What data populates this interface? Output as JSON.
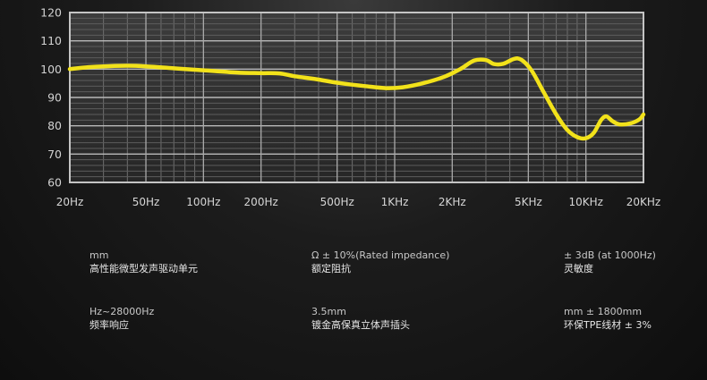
{
  "chart_data": {
    "type": "line",
    "xscale": "log",
    "xlim": [
      20,
      20000
    ],
    "ylim": [
      60,
      120
    ],
    "grid": true,
    "x_ticks": [
      {
        "value": 20,
        "label": "20Hz"
      },
      {
        "value": 50,
        "label": "50Hz"
      },
      {
        "value": 100,
        "label": "100Hz"
      },
      {
        "value": 200,
        "label": "200Hz"
      },
      {
        "value": 500,
        "label": "500Hz"
      },
      {
        "value": 1000,
        "label": "1KHz"
      },
      {
        "value": 2000,
        "label": "2KHz"
      },
      {
        "value": 5000,
        "label": "5KHz"
      },
      {
        "value": 10000,
        "label": "10KHz"
      },
      {
        "value": 20000,
        "label": "20KHz"
      }
    ],
    "y_ticks": [
      60,
      70,
      80,
      90,
      100,
      110,
      120
    ],
    "series": [
      {
        "color": "#f2e21a",
        "points": [
          [
            20,
            100
          ],
          [
            25,
            100.7
          ],
          [
            30,
            101
          ],
          [
            40,
            101.2
          ],
          [
            50,
            101
          ],
          [
            70,
            100.3
          ],
          [
            100,
            99.6
          ],
          [
            150,
            98.8
          ],
          [
            200,
            98.6
          ],
          [
            250,
            98.5
          ],
          [
            300,
            97.5
          ],
          [
            400,
            96.3
          ],
          [
            500,
            95.2
          ],
          [
            700,
            94
          ],
          [
            900,
            93.3
          ],
          [
            1100,
            93.6
          ],
          [
            1400,
            95
          ],
          [
            1800,
            97.2
          ],
          [
            2200,
            100
          ],
          [
            2600,
            103
          ],
          [
            3000,
            103.2
          ],
          [
            3300,
            101.8
          ],
          [
            3700,
            101.9
          ],
          [
            4200,
            103.6
          ],
          [
            4600,
            103.3
          ],
          [
            5200,
            99.5
          ],
          [
            6000,
            92
          ],
          [
            7000,
            84
          ],
          [
            8000,
            78.5
          ],
          [
            9000,
            76
          ],
          [
            10000,
            75.6
          ],
          [
            11000,
            77.5
          ],
          [
            12000,
            82
          ],
          [
            12800,
            83.3
          ],
          [
            13800,
            81.6
          ],
          [
            15000,
            80.5
          ],
          [
            17000,
            80.8
          ],
          [
            19000,
            82.2
          ],
          [
            20000,
            84
          ]
        ]
      }
    ]
  },
  "specs": [
    {
      "value": "mm",
      "label": "高性能微型发声驱动单元"
    },
    {
      "value": "Ω ± 10%(Rated impedance)",
      "label": "额定阻抗"
    },
    {
      "value": "± 3dB (at 1000Hz)",
      "label": "灵敏度"
    },
    {
      "value": "Hz~28000Hz",
      "label": "频率响应"
    },
    {
      "value": "3.5mm",
      "label": "镀金高保真立体声插头"
    },
    {
      "value": "mm ± 1800mm",
      "label": "环保TPE线材 ± 3%"
    }
  ]
}
